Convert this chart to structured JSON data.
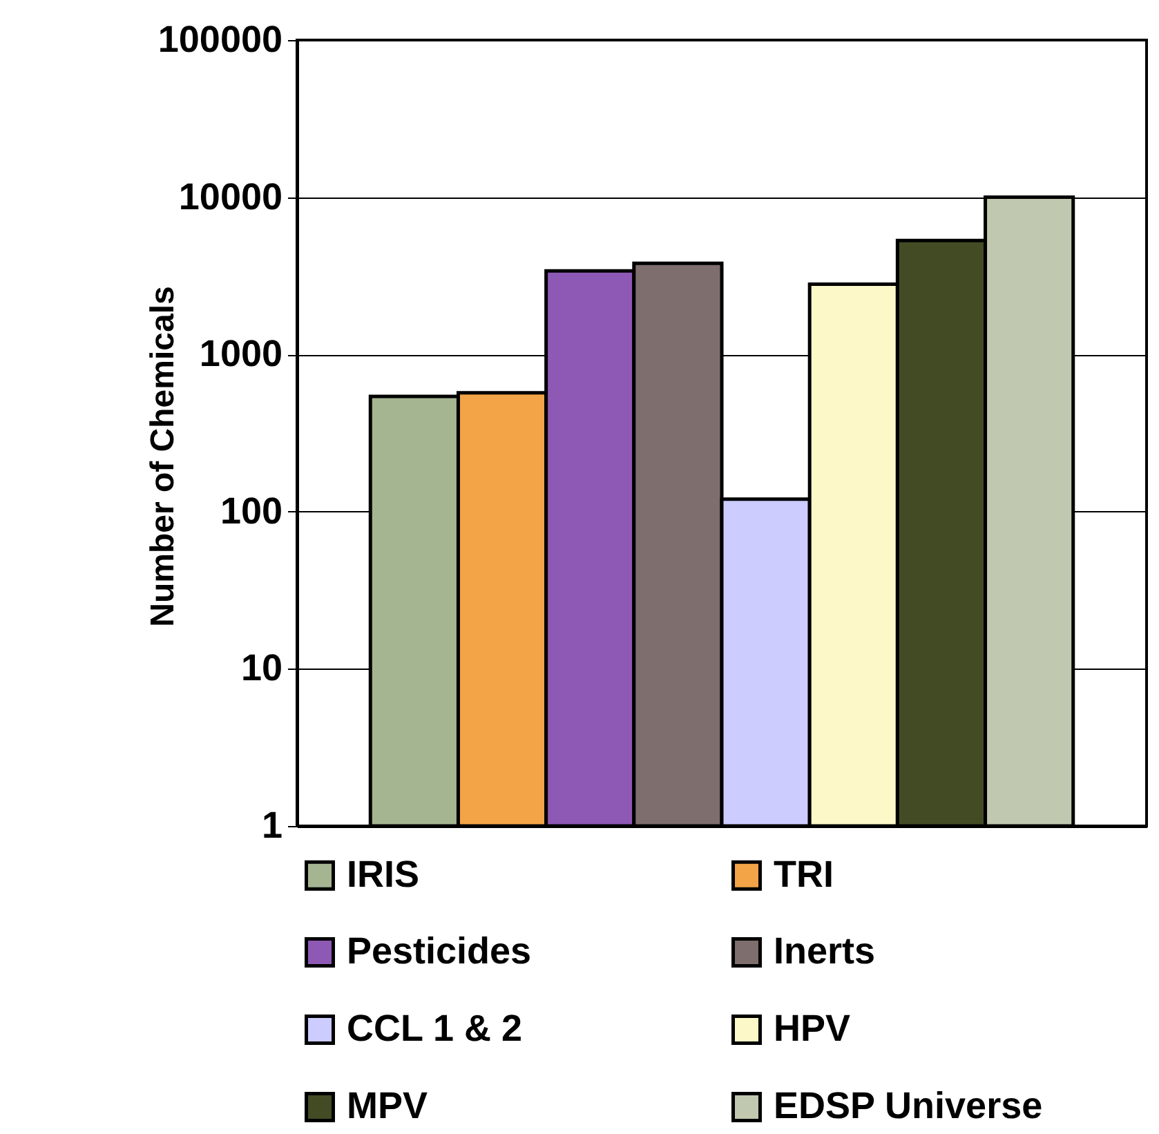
{
  "chart_data": {
    "type": "bar",
    "ylabel": "Number of Chemicals",
    "categories": [
      null
    ],
    "log": true,
    "ylim": [
      1,
      100000
    ],
    "yticks": [
      1,
      10,
      100,
      1000,
      10000,
      100000
    ],
    "grid": "y",
    "legend": "bottom",
    "tick_labels": "y",
    "series": [
      {
        "name": "IRIS",
        "color": "#a5b592",
        "values": [
          540
        ]
      },
      {
        "name": "TRI",
        "color": "#f2a447",
        "values": [
          570
        ]
      },
      {
        "name": "Pesticides",
        "color": "#8e59b4",
        "values": [
          3400
        ]
      },
      {
        "name": "Inerts",
        "color": "#7e6e6e",
        "values": [
          3800
        ]
      },
      {
        "name": "CCL 1 & 2",
        "color": "#ccccfe",
        "values": [
          120
        ]
      },
      {
        "name": "HPV",
        "color": "#fdf8c8",
        "values": [
          2800
        ]
      },
      {
        "name": "MPV",
        "color": "#434b24",
        "values": [
          5300
        ]
      },
      {
        "name": "EDSP Universe",
        "color": "#c0c8b0",
        "values": [
          10000
        ]
      }
    ]
  }
}
